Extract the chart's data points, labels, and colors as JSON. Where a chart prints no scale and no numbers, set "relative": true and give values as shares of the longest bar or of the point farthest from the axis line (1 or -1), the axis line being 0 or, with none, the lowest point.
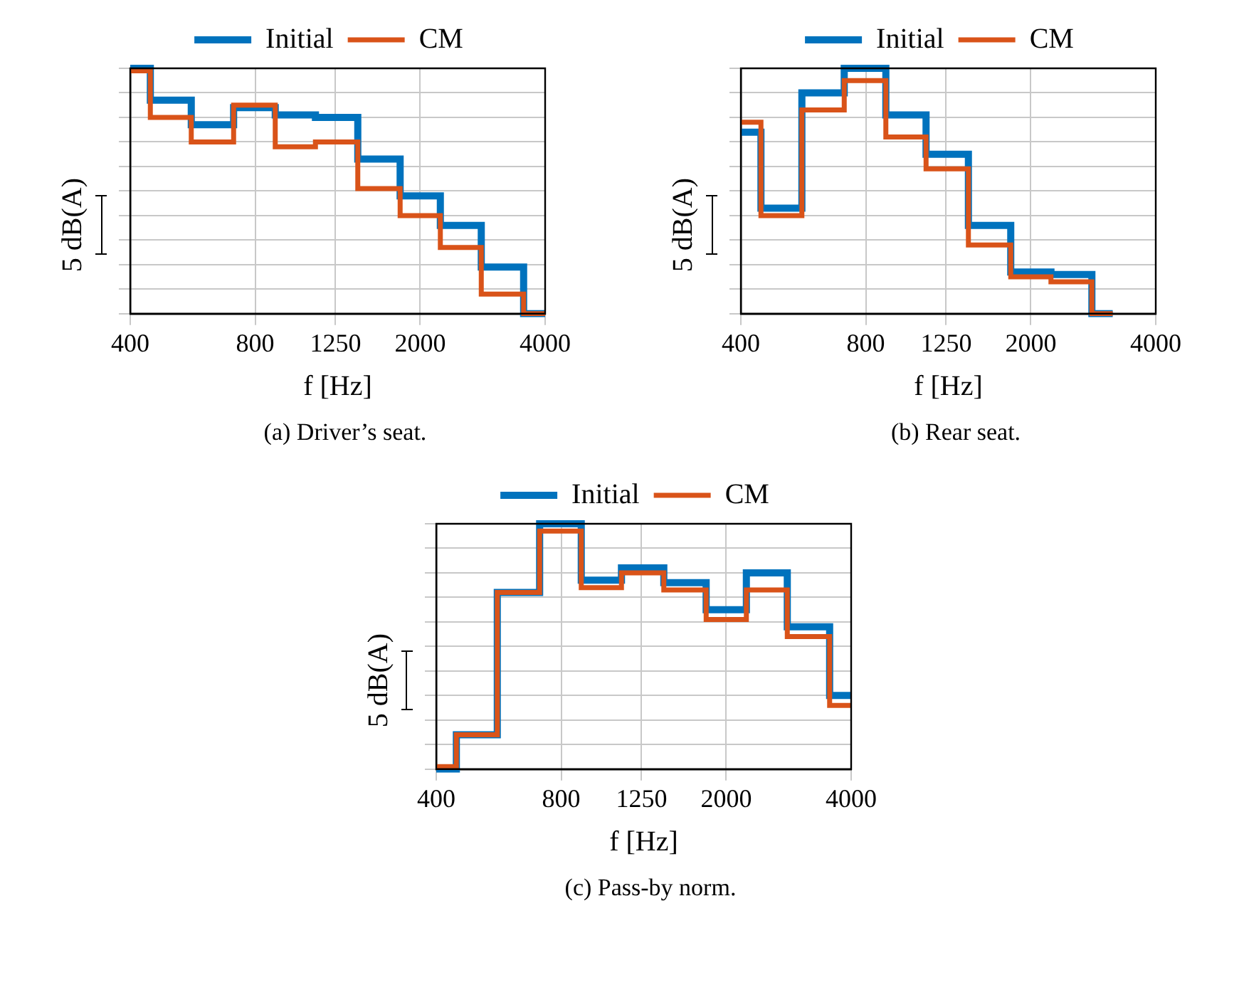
{
  "chart_data": [
    {
      "type": "step",
      "xlabel": "f [Hz]",
      "ylabel": "5 dB(A)",
      "annotations": [
        "(a) Driver’s seat."
      ],
      "relative": true,
      "log": "x",
      "grid": true,
      "legend": "top",
      "x": [
        400,
        500,
        630,
        800,
        1000,
        1250,
        1600,
        2000,
        2500,
        3150,
        4000
      ],
      "xlim": [
        400,
        4000
      ],
      "xticks": [
        400,
        800,
        1250,
        2000,
        4000
      ],
      "series": [
        {
          "name": "Initial",
          "color": "#0072bd",
          "values": [
            1.0,
            0.87,
            0.77,
            0.84,
            0.81,
            0.8,
            0.63,
            0.48,
            0.36,
            0.19,
            0
          ]
        },
        {
          "name": "CM",
          "color": "#d95319",
          "values": [
            0.99,
            0.8,
            0.7,
            0.85,
            0.68,
            0.7,
            0.51,
            0.4,
            0.27,
            0.08,
            0
          ]
        }
      ]
    },
    {
      "type": "step",
      "xlabel": "f [Hz]",
      "ylabel": "5 dB(A)",
      "annotations": [
        "(b) Rear seat."
      ],
      "relative": true,
      "log": "x",
      "grid": true,
      "legend": "top",
      "x": [
        400,
        500,
        630,
        800,
        1000,
        1250,
        1600,
        2000,
        2500,
        3150
      ],
      "xlim": [
        400,
        4000
      ],
      "xticks": [
        400,
        800,
        1250,
        2000,
        4000
      ],
      "series": [
        {
          "name": "Initial",
          "color": "#0072bd",
          "values": [
            0.74,
            0.43,
            0.9,
            1.0,
            0.81,
            0.65,
            0.36,
            0.17,
            0.16,
            0
          ]
        },
        {
          "name": "CM",
          "color": "#d95319",
          "values": [
            0.78,
            0.4,
            0.83,
            0.95,
            0.72,
            0.59,
            0.28,
            0.15,
            0.13,
            0
          ]
        }
      ]
    },
    {
      "type": "step",
      "xlabel": "f [Hz]",
      "ylabel": "5 dB(A)",
      "annotations": [
        "(c) Pass-by norm."
      ],
      "relative": true,
      "log": "x",
      "grid": true,
      "legend": "top",
      "x": [
        400,
        500,
        630,
        800,
        1000,
        1250,
        1600,
        2000,
        2500,
        3150,
        4000
      ],
      "xlim": [
        400,
        4000
      ],
      "xticks": [
        400,
        800,
        1250,
        2000,
        4000
      ],
      "series": [
        {
          "name": "Initial",
          "color": "#0072bd",
          "values": [
            0,
            0.14,
            0.72,
            1.0,
            0.77,
            0.82,
            0.76,
            0.65,
            0.8,
            0.58,
            0.3
          ]
        },
        {
          "name": "CM",
          "color": "#d95319",
          "values": [
            0.01,
            0.14,
            0.72,
            0.97,
            0.74,
            0.8,
            0.73,
            0.61,
            0.73,
            0.54,
            0.26
          ]
        }
      ]
    }
  ]
}
